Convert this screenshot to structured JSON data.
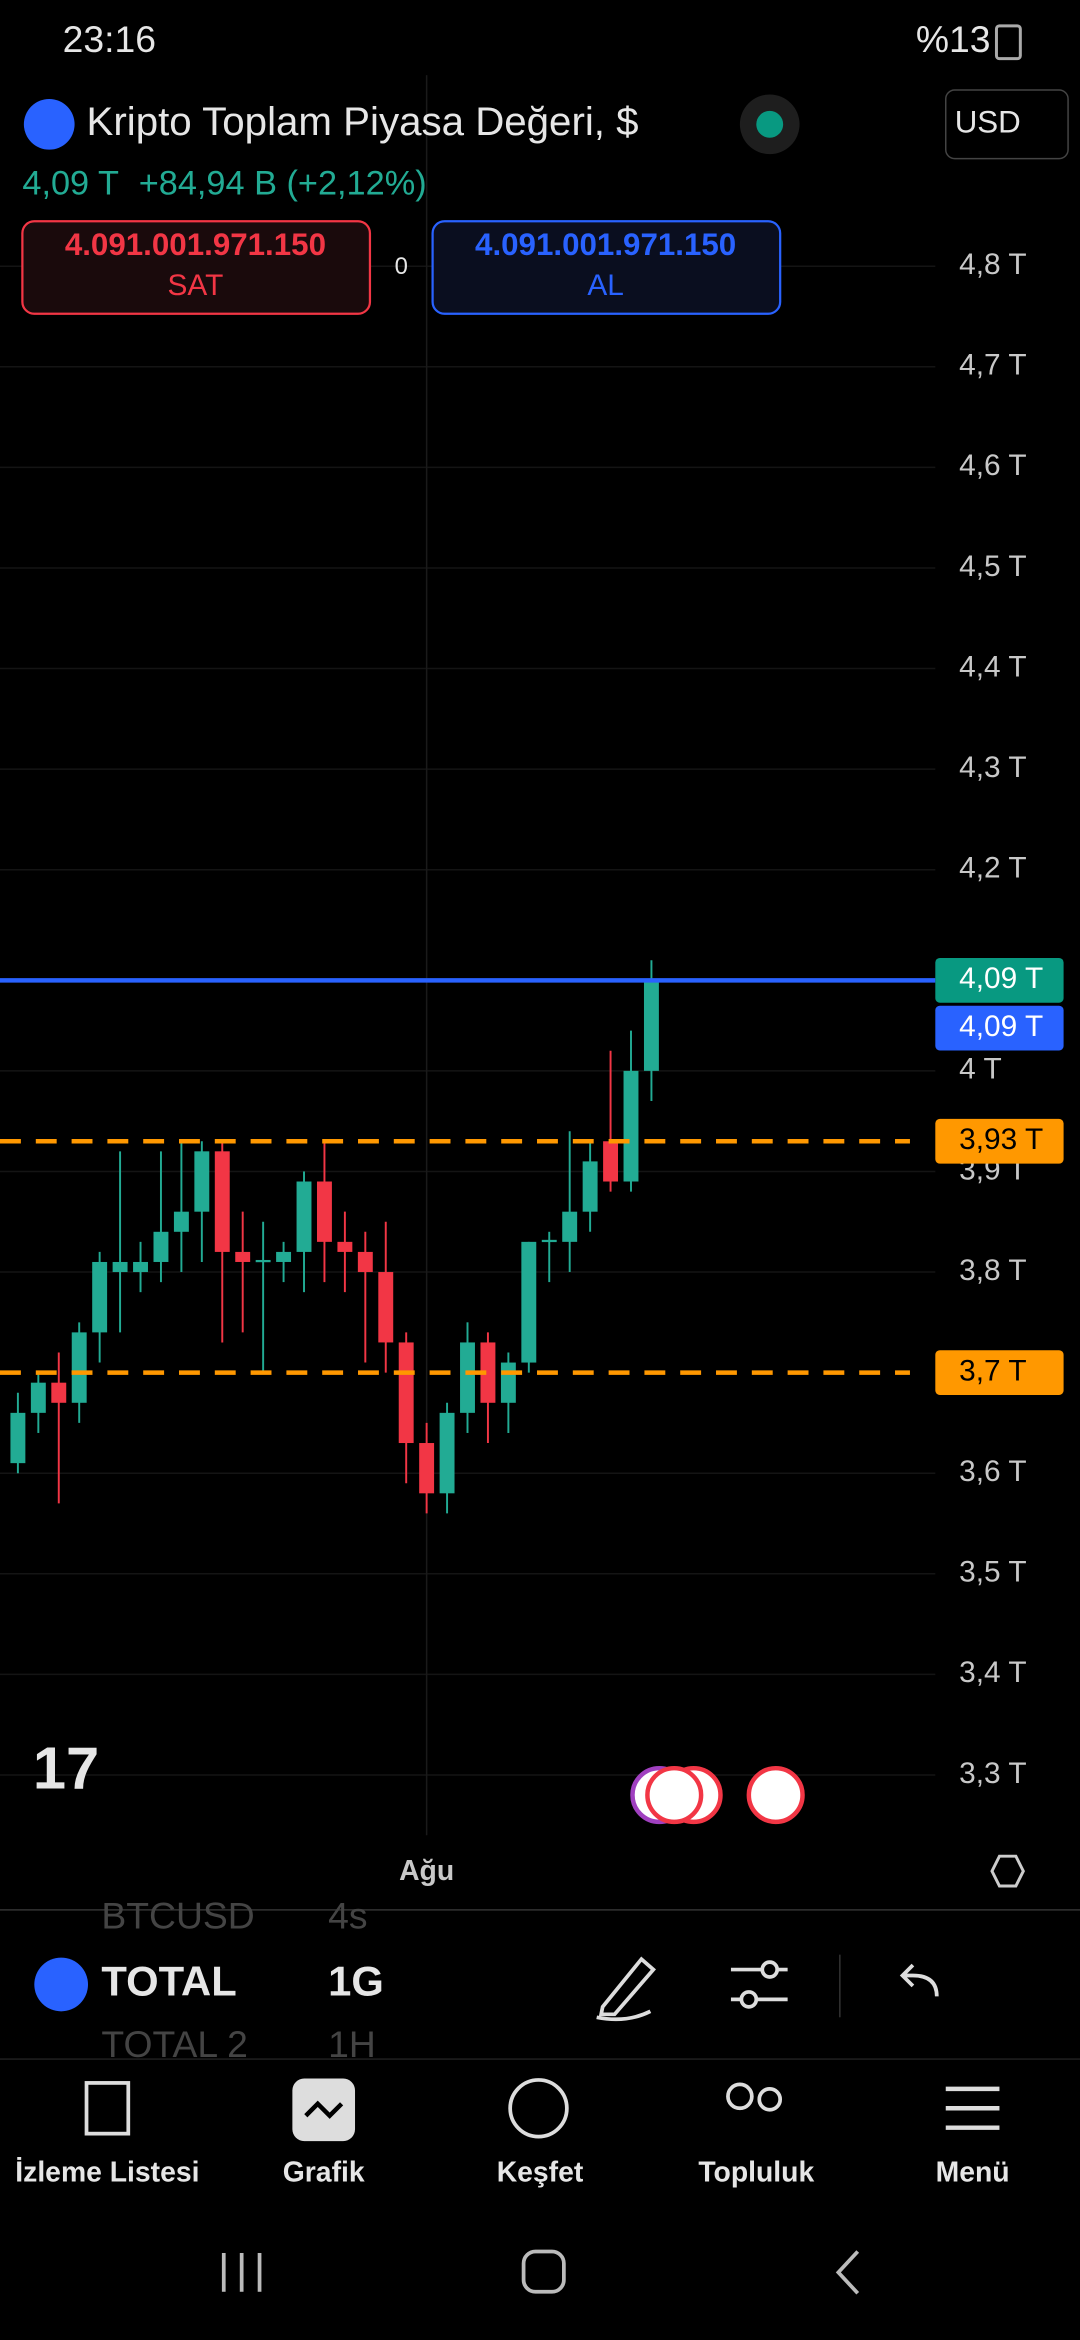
{
  "status_bar": {
    "time": "23:16",
    "battery": "%13"
  },
  "header": {
    "title": "Kripto Toplam Piyasa Değeri, $",
    "currency": "USD",
    "last": "4,09 T",
    "change": "+84,94 B (+2,12%)"
  },
  "trade": {
    "sell_price": "4.091.001.971.150",
    "sell": "SAT",
    "spread": "0",
    "buy_price": "4.091.001.971.150",
    "buy": "AL"
  },
  "chart_data": {
    "type": "candlestick",
    "up_color": "#22ab94",
    "down_color": "#f23645",
    "grid": true,
    "ylim": [
      3.24,
      4.99
    ],
    "yticks": [
      {
        "value": 4.8,
        "label": "4,8 T"
      },
      {
        "value": 4.7,
        "label": "4,7 T"
      },
      {
        "value": 4.6,
        "label": "4,6 T"
      },
      {
        "value": 4.5,
        "label": "4,5 T"
      },
      {
        "value": 4.4,
        "label": "4,4 T"
      },
      {
        "value": 4.3,
        "label": "4,3 T"
      },
      {
        "value": 4.2,
        "label": "4,2 T"
      },
      {
        "value": 4.0,
        "label": "4 T"
      },
      {
        "value": 3.9,
        "label": "3,9 T"
      },
      {
        "value": 3.8,
        "label": "3,8 T"
      },
      {
        "value": 3.6,
        "label": "3,6 T"
      },
      {
        "value": 3.5,
        "label": "3,5 T"
      },
      {
        "value": 3.4,
        "label": "3,4 T"
      },
      {
        "value": 3.3,
        "label": "3,3 T"
      }
    ],
    "categories": [
      null,
      null,
      null,
      null,
      null,
      null,
      null,
      null,
      null,
      null,
      null,
      null,
      null,
      null,
      null,
      null,
      null,
      null,
      null,
      null,
      "Ağu",
      null,
      null,
      null,
      null,
      null,
      null,
      null,
      null,
      null,
      null,
      null
    ],
    "candles": [
      {
        "open": 3.61,
        "high": 3.68,
        "low": 3.6,
        "close": 3.66
      },
      {
        "open": 3.66,
        "high": 3.7,
        "low": 3.64,
        "close": 3.69
      },
      {
        "open": 3.69,
        "high": 3.72,
        "low": 3.57,
        "close": 3.67
      },
      {
        "open": 3.67,
        "high": 3.75,
        "low": 3.65,
        "close": 3.74
      },
      {
        "open": 3.74,
        "high": 3.82,
        "low": 3.71,
        "close": 3.81
      },
      {
        "open": 3.8,
        "high": 3.92,
        "low": 3.74,
        "close": 3.81
      },
      {
        "open": 3.8,
        "high": 3.83,
        "low": 3.78,
        "close": 3.81
      },
      {
        "open": 3.81,
        "high": 3.92,
        "low": 3.79,
        "close": 3.84
      },
      {
        "open": 3.84,
        "high": 3.93,
        "low": 3.8,
        "close": 3.86
      },
      {
        "open": 3.86,
        "high": 3.93,
        "low": 3.81,
        "close": 3.92
      },
      {
        "open": 3.92,
        "high": 3.93,
        "low": 3.73,
        "close": 3.82
      },
      {
        "open": 3.82,
        "high": 3.86,
        "low": 3.74,
        "close": 3.81
      },
      {
        "open": 3.81,
        "high": 3.85,
        "low": 3.7,
        "close": 3.812
      },
      {
        "open": 3.81,
        "high": 3.83,
        "low": 3.79,
        "close": 3.82
      },
      {
        "open": 3.82,
        "high": 3.9,
        "low": 3.78,
        "close": 3.89
      },
      {
        "open": 3.89,
        "high": 3.93,
        "low": 3.79,
        "close": 3.83
      },
      {
        "open": 3.83,
        "high": 3.86,
        "low": 3.78,
        "close": 3.82
      },
      {
        "open": 3.82,
        "high": 3.84,
        "low": 3.71,
        "close": 3.8
      },
      {
        "open": 3.8,
        "high": 3.85,
        "low": 3.7,
        "close": 3.73
      },
      {
        "open": 3.73,
        "high": 3.74,
        "low": 3.59,
        "close": 3.63
      },
      {
        "open": 3.63,
        "high": 3.65,
        "low": 3.56,
        "close": 3.58
      },
      {
        "open": 3.58,
        "high": 3.67,
        "low": 3.56,
        "close": 3.66
      },
      {
        "open": 3.66,
        "high": 3.75,
        "low": 3.64,
        "close": 3.73
      },
      {
        "open": 3.73,
        "high": 3.74,
        "low": 3.63,
        "close": 3.67
      },
      {
        "open": 3.67,
        "high": 3.72,
        "low": 3.64,
        "close": 3.71
      },
      {
        "open": 3.71,
        "high": 3.83,
        "low": 3.7,
        "close": 3.83
      },
      {
        "open": 3.83,
        "high": 3.84,
        "low": 3.79,
        "close": 3.832
      },
      {
        "open": 3.83,
        "high": 3.94,
        "low": 3.8,
        "close": 3.86
      },
      {
        "open": 3.86,
        "high": 3.93,
        "low": 3.84,
        "close": 3.91
      },
      {
        "open": 3.93,
        "high": 4.02,
        "low": 3.88,
        "close": 3.89
      },
      {
        "open": 3.89,
        "high": 4.04,
        "low": 3.88,
        "close": 4.0
      },
      {
        "open": 4.0,
        "high": 4.11,
        "low": 3.97,
        "close": 4.09
      }
    ],
    "lines": [
      {
        "value": 4.09,
        "color": "#2962ff",
        "style": "solid"
      },
      {
        "value": 3.93,
        "color": "#ff9800",
        "style": "dashed"
      },
      {
        "value": 3.7,
        "color": "#ff9800",
        "style": "dashed"
      }
    ],
    "price_labels": [
      {
        "value": 4.09,
        "label": "4,09 T",
        "color": "#089981"
      },
      {
        "value": 4.09,
        "label": "4,09 T",
        "color": "#2962ff"
      },
      {
        "value": 3.93,
        "label": "3,93 T",
        "color": "#ff9800"
      },
      {
        "value": 3.7,
        "label": "3,7 T",
        "color": "#ff9800"
      }
    ]
  },
  "toolbar": {
    "symbol_prev": "BTCUSD",
    "interval_prev": "4s",
    "symbol": "TOTAL",
    "interval": "1G",
    "symbol_next": "TOTAL 2",
    "interval_next": "1H"
  },
  "nav": [
    "İzleme Listesi",
    "Grafik",
    "Keşfet",
    "Topluluk",
    "Menü"
  ]
}
